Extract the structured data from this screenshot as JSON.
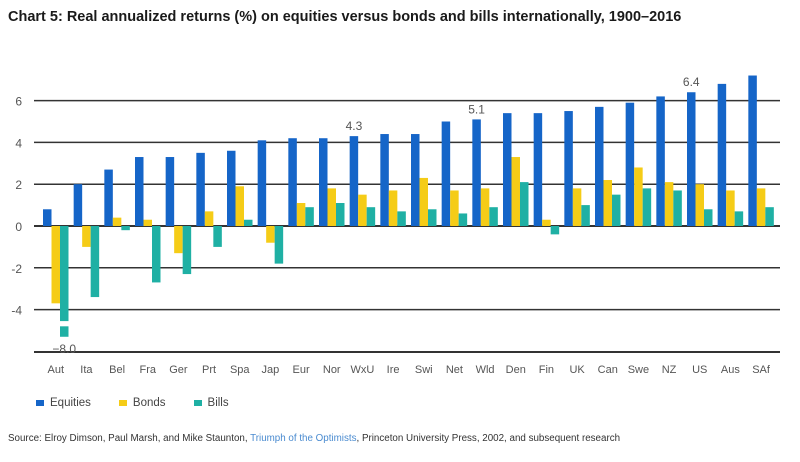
{
  "title": "Chart 5: Real annualized returns (%) on equities versus bonds and bills internationally, 1900–2016",
  "legend": [
    {
      "label": "Equities",
      "color": "#1565c8"
    },
    {
      "label": "Bonds",
      "color": "#f5cc17"
    },
    {
      "label": "Bills",
      "color": "#1fb0a4"
    }
  ],
  "source": {
    "prefix": "Source: Elroy Dimson, Paul Marsh, and Mike Staunton, ",
    "link": "Triumph of the Optimists",
    "suffix": ", Princeton University Press, 2002, and subsequent research"
  },
  "chart_data": {
    "type": "bar",
    "title": "Chart 5: Real annualized returns (%) on equities versus bonds and bills internationally, 1900–2016",
    "xlabel": "",
    "ylabel": "",
    "ylim": [
      -6,
      7.5
    ],
    "yticks": [
      6,
      4,
      2,
      0,
      -2,
      -4
    ],
    "grid": true,
    "legend_position": "bottom-left",
    "categories": [
      "Aut",
      "Ita",
      "Bel",
      "Fra",
      "Ger",
      "Prt",
      "Spa",
      "Jap",
      "Eur",
      "Nor",
      "WxU",
      "Ire",
      "Swi",
      "Net",
      "Wld",
      "Den",
      "Fin",
      "UK",
      "Can",
      "Swe",
      "NZ",
      "US",
      "Aus",
      "SAf"
    ],
    "series": [
      {
        "name": "Equities",
        "color": "#1565c8",
        "values": [
          0.8,
          2.0,
          2.7,
          3.3,
          3.3,
          3.5,
          3.6,
          4.1,
          4.2,
          4.2,
          4.3,
          4.4,
          4.4,
          5.0,
          5.1,
          5.4,
          5.4,
          5.5,
          5.7,
          5.9,
          6.2,
          6.4,
          6.8,
          7.2
        ]
      },
      {
        "name": "Bonds",
        "color": "#f5cc17",
        "values": [
          -3.7,
          -1.0,
          0.4,
          0.3,
          -1.3,
          0.7,
          1.9,
          -0.8,
          1.1,
          1.8,
          1.5,
          1.7,
          2.3,
          1.7,
          1.8,
          3.3,
          0.3,
          1.8,
          2.2,
          2.8,
          2.1,
          2.0,
          1.7,
          1.8
        ]
      },
      {
        "name": "Bills",
        "color": "#1fb0a4",
        "values": [
          -8.0,
          -3.4,
          -0.2,
          -2.7,
          -2.3,
          -1.0,
          0.3,
          -1.8,
          0.9,
          1.1,
          0.9,
          0.7,
          0.8,
          0.6,
          0.9,
          2.1,
          -0.4,
          1.0,
          1.5,
          1.8,
          1.7,
          0.8,
          0.7,
          0.9
        ]
      }
    ],
    "annotations": [
      {
        "category": "Aut",
        "series": "Bills",
        "text": "−8.0"
      },
      {
        "category": "WxU",
        "series": "Equities",
        "text": "4.3"
      },
      {
        "category": "Wld",
        "series": "Equities",
        "text": "5.1"
      },
      {
        "category": "US",
        "series": "Equities",
        "text": "6.4"
      }
    ]
  }
}
